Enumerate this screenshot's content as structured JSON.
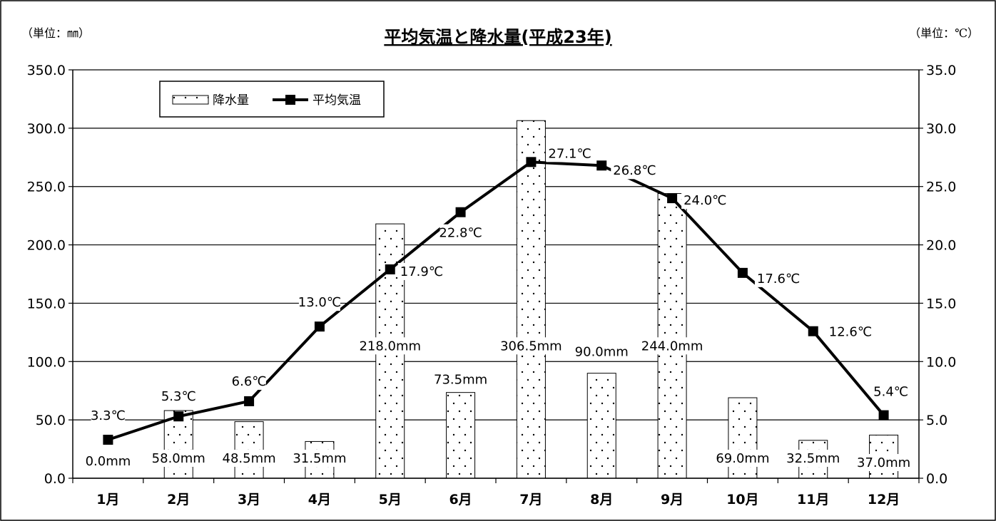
{
  "chart_data": {
    "type": "bar+line",
    "title": "平均気温と降水量(平成23年)",
    "left_unit": "（単位：㎜）",
    "right_unit": "（単位：℃）",
    "categories": [
      "1月",
      "2月",
      "3月",
      "4月",
      "5月",
      "6月",
      "7月",
      "8月",
      "9月",
      "10月",
      "11月",
      "12月"
    ],
    "y_left": {
      "min": 0,
      "max": 350,
      "step": 50,
      "ticks": [
        "0.0",
        "50.0",
        "100.0",
        "150.0",
        "200.0",
        "250.0",
        "300.0",
        "350.0"
      ]
    },
    "y_right": {
      "min": 0,
      "max": 35,
      "step": 5,
      "ticks": [
        "0.0",
        "5.0",
        "10.0",
        "15.0",
        "20.0",
        "25.0",
        "30.0",
        "35.0"
      ]
    },
    "grid": true,
    "legend": {
      "position": "top-left",
      "items": [
        "降水量",
        "平均気温"
      ]
    },
    "series": [
      {
        "name": "降水量",
        "type": "bar",
        "axis": "left",
        "values": [
          0.0,
          58.0,
          48.5,
          31.5,
          218.0,
          73.5,
          306.5,
          90.0,
          244.0,
          69.0,
          32.5,
          37.0
        ],
        "labels": [
          "0.0mm",
          "58.0mm",
          "48.5mm",
          "31.5mm",
          "218.0mm",
          "73.5mm",
          "306.5mm",
          "90.0mm",
          "244.0mm",
          "69.0mm",
          "32.5mm",
          "37.0mm"
        ]
      },
      {
        "name": "平均気温",
        "type": "line",
        "axis": "right",
        "values": [
          3.3,
          5.3,
          6.6,
          13.0,
          17.9,
          22.8,
          27.1,
          26.8,
          24.0,
          17.6,
          12.6,
          5.4
        ],
        "labels": [
          "3.3℃",
          "5.3℃",
          "6.6℃",
          "13.0℃",
          "17.9℃",
          "22.8℃",
          "27.1℃",
          "26.8℃",
          "24.0℃",
          "17.6℃",
          "12.6℃",
          "5.4℃"
        ]
      }
    ]
  }
}
